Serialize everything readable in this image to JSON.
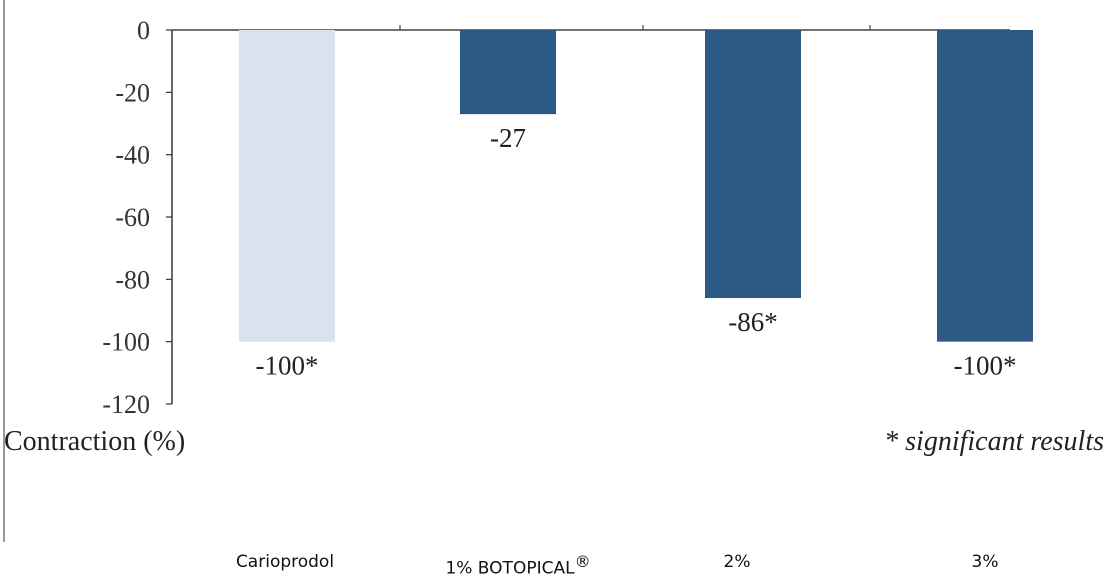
{
  "chart_data": {
    "type": "bar",
    "categories": [
      "Carioprodol",
      "1% BOTOPICAL",
      "2%",
      "3%"
    ],
    "category_superscripts": [
      "",
      "®",
      "",
      ""
    ],
    "values": [
      -100,
      -27,
      -86,
      -100
    ],
    "data_labels": [
      "-100*",
      "-27",
      "-86*",
      "-100*"
    ],
    "bar_colors": [
      "#d8e3ee",
      "#2b5a86",
      "#2b5a86",
      "#2b5a86"
    ],
    "ylabel": "Contraction (%)",
    "ylim": [
      -120,
      0
    ],
    "yticks": [
      0,
      -20,
      -40,
      -60,
      -80,
      -100,
      -120
    ],
    "annotation": "* significant results",
    "grid": false,
    "legend": "none"
  }
}
